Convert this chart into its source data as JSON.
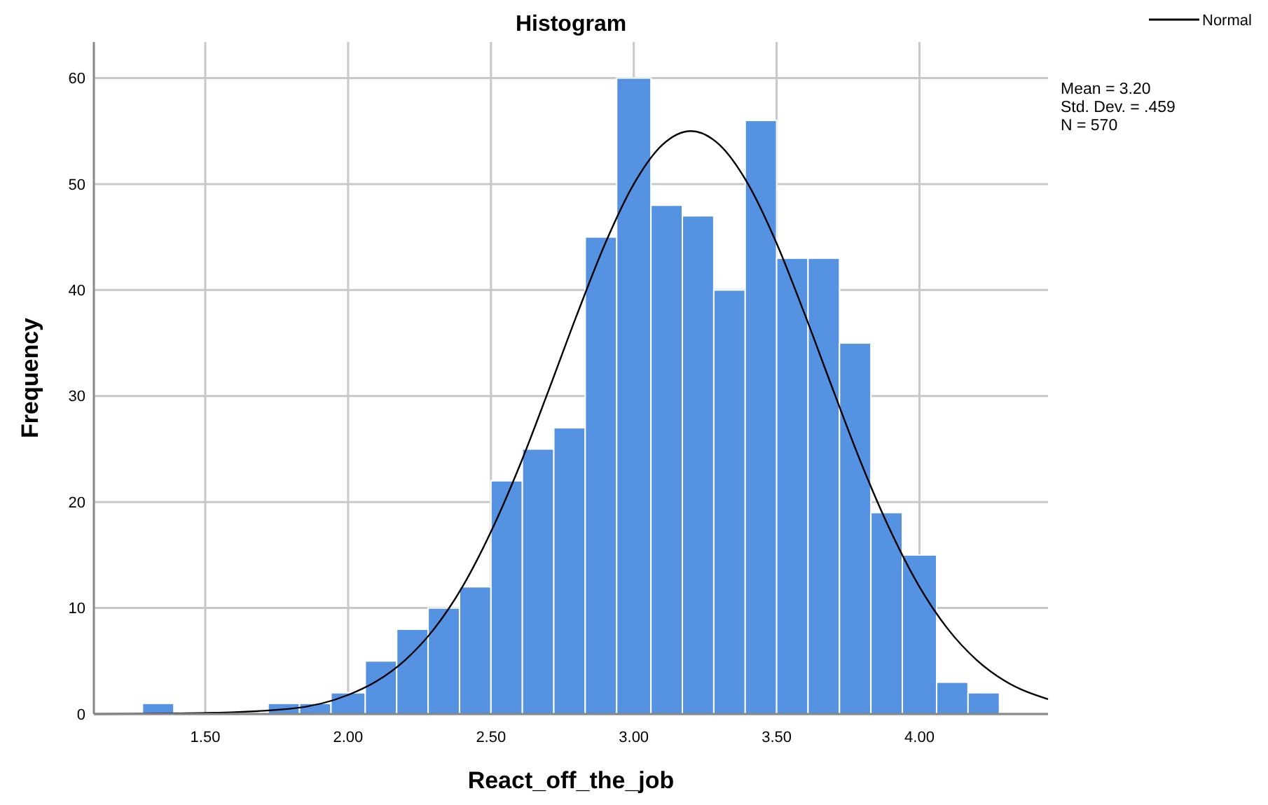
{
  "chart_data": {
    "type": "histogram",
    "title": "Histogram",
    "xlabel": "React_off_the_job",
    "ylabel": "Frequency",
    "bins": [
      1.28,
      1.39,
      1.72,
      1.83,
      1.94,
      2.06,
      2.17,
      2.28,
      2.39,
      2.5,
      2.61,
      2.72,
      2.83,
      2.94,
      3.06,
      3.17,
      3.28,
      3.39,
      3.5,
      3.61,
      3.72,
      3.83,
      3.94,
      4.06,
      4.17,
      4.28
    ],
    "series": [
      {
        "color": "#5593e2",
        "values": [
          1,
          0,
          1,
          1,
          2,
          5,
          8,
          10,
          12,
          22,
          25,
          27,
          45,
          60,
          48,
          47,
          40,
          56,
          43,
          43,
          35,
          19,
          15,
          3,
          2
        ]
      },
      {
        "type": "line",
        "name": "Normal",
        "color": "#000000",
        "x": [
          1.11,
          1.5,
          1.8,
          2.0,
          2.1,
          2.2,
          2.3,
          2.4,
          2.5,
          2.6,
          2.7,
          2.8,
          2.9,
          3.0,
          3.1,
          3.2,
          3.3,
          3.4,
          3.5,
          3.6,
          3.7,
          3.8,
          3.9,
          4.0,
          4.1,
          4.2,
          4.3,
          4.45
        ],
        "values": [
          0,
          0.1,
          0.5,
          1.8,
          3.1,
          5.1,
          8.0,
          12.0,
          17.2,
          23.4,
          30.4,
          37.6,
          44.4,
          50.0,
          53.7,
          55.0,
          53.7,
          50.0,
          44.4,
          37.6,
          30.4,
          23.4,
          17.2,
          12.0,
          8.0,
          5.1,
          3.1,
          1.4
        ]
      }
    ],
    "xlim": [
      1.11,
      4.45
    ],
    "ylim": [
      0,
      63.4
    ],
    "xticks": [
      {
        "value": 1.5,
        "label": "1.50"
      },
      {
        "value": 2,
        "label": "2.00"
      },
      {
        "value": 2.5,
        "label": "2.50"
      },
      {
        "value": 3,
        "label": "3.00"
      },
      {
        "value": 3.5,
        "label": "3.50"
      },
      {
        "value": 4,
        "label": "4.00"
      }
    ],
    "yticks": [
      0,
      10,
      20,
      30,
      40,
      50,
      60
    ],
    "grid": true,
    "legend": "top right",
    "marker": "none",
    "line_style": "solid",
    "annotations": [
      "Mean = 3.20",
      "Std. Dev. = .459",
      "N = 570"
    ]
  }
}
